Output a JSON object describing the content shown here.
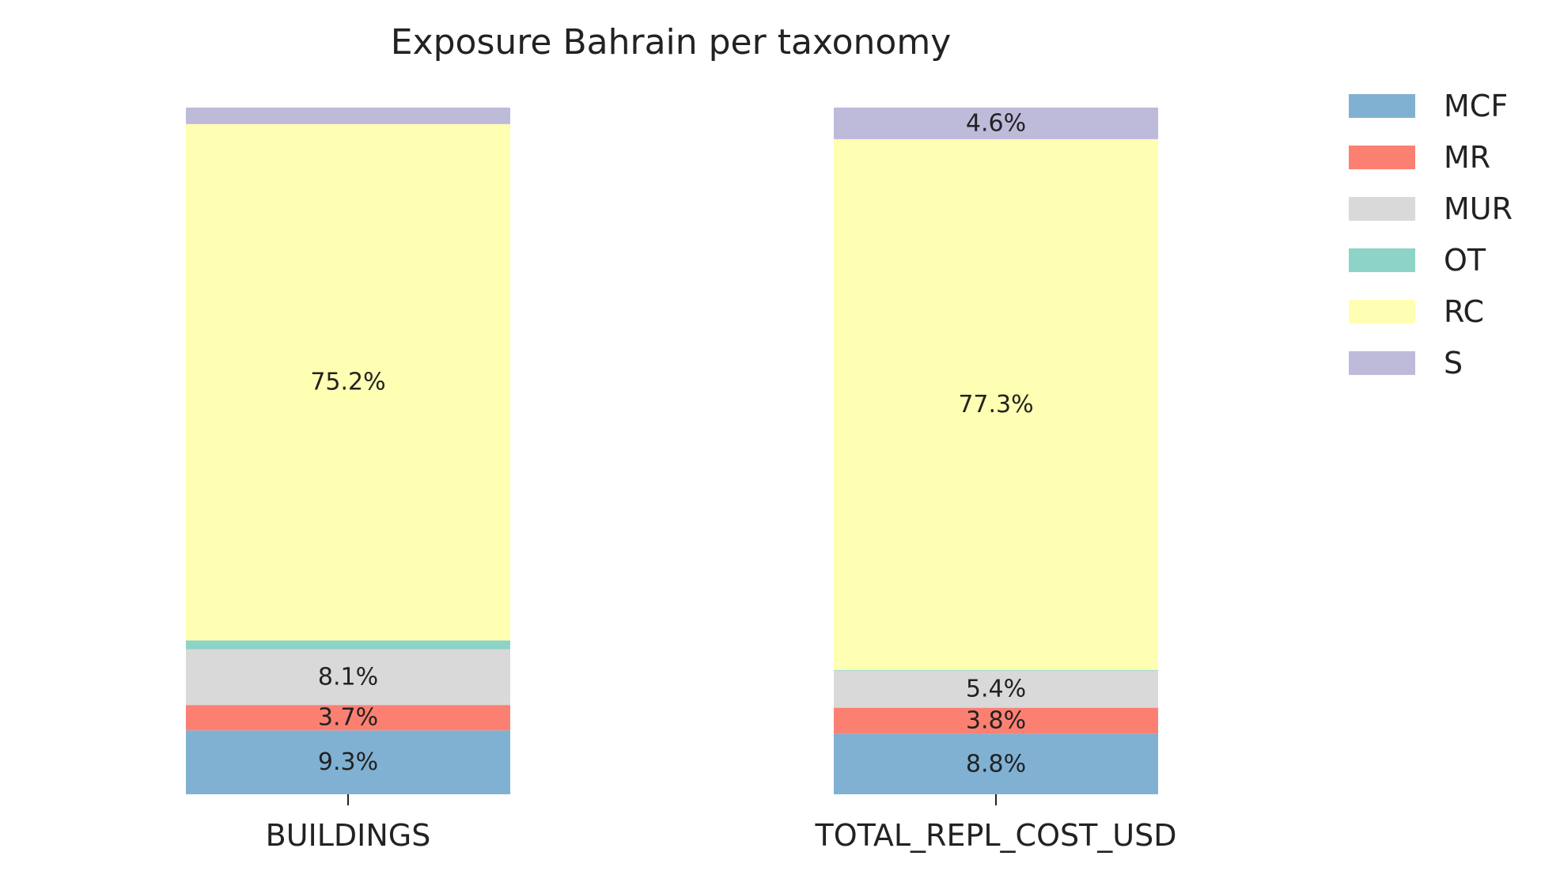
{
  "chart_data": {
    "type": "bar",
    "stacked": true,
    "normalized_percent": true,
    "title": "Exposure Bahrain per taxonomy",
    "xlabel": "",
    "ylabel": "",
    "ylim": [
      0,
      100
    ],
    "grid": false,
    "legend_position": "top-right outside",
    "categories": [
      "BUILDINGS",
      "TOTAL_REPL_COST_USD"
    ],
    "series": [
      {
        "name": "MCF",
        "color": "#80b1d3",
        "values": [
          9.3,
          8.8
        ],
        "labels": [
          "9.3%",
          "8.8%"
        ]
      },
      {
        "name": "MR",
        "color": "#fb8072",
        "values": [
          3.7,
          3.8
        ],
        "labels": [
          "3.7%",
          "3.8%"
        ]
      },
      {
        "name": "MUR",
        "color": "#d9d9d9",
        "values": [
          8.1,
          5.4
        ],
        "labels": [
          "8.1%",
          "5.4%"
        ]
      },
      {
        "name": "OT",
        "color": "#8dd3c7",
        "values": [
          1.3,
          0.1
        ],
        "labels": [
          "",
          ""
        ]
      },
      {
        "name": "RC",
        "color": "#ffffb3",
        "values": [
          75.2,
          77.3
        ],
        "labels": [
          "75.2%",
          "77.3%"
        ]
      },
      {
        "name": "S",
        "color": "#bebada",
        "values": [
          2.4,
          4.6
        ],
        "labels": [
          "",
          "4.6%"
        ]
      }
    ]
  }
}
